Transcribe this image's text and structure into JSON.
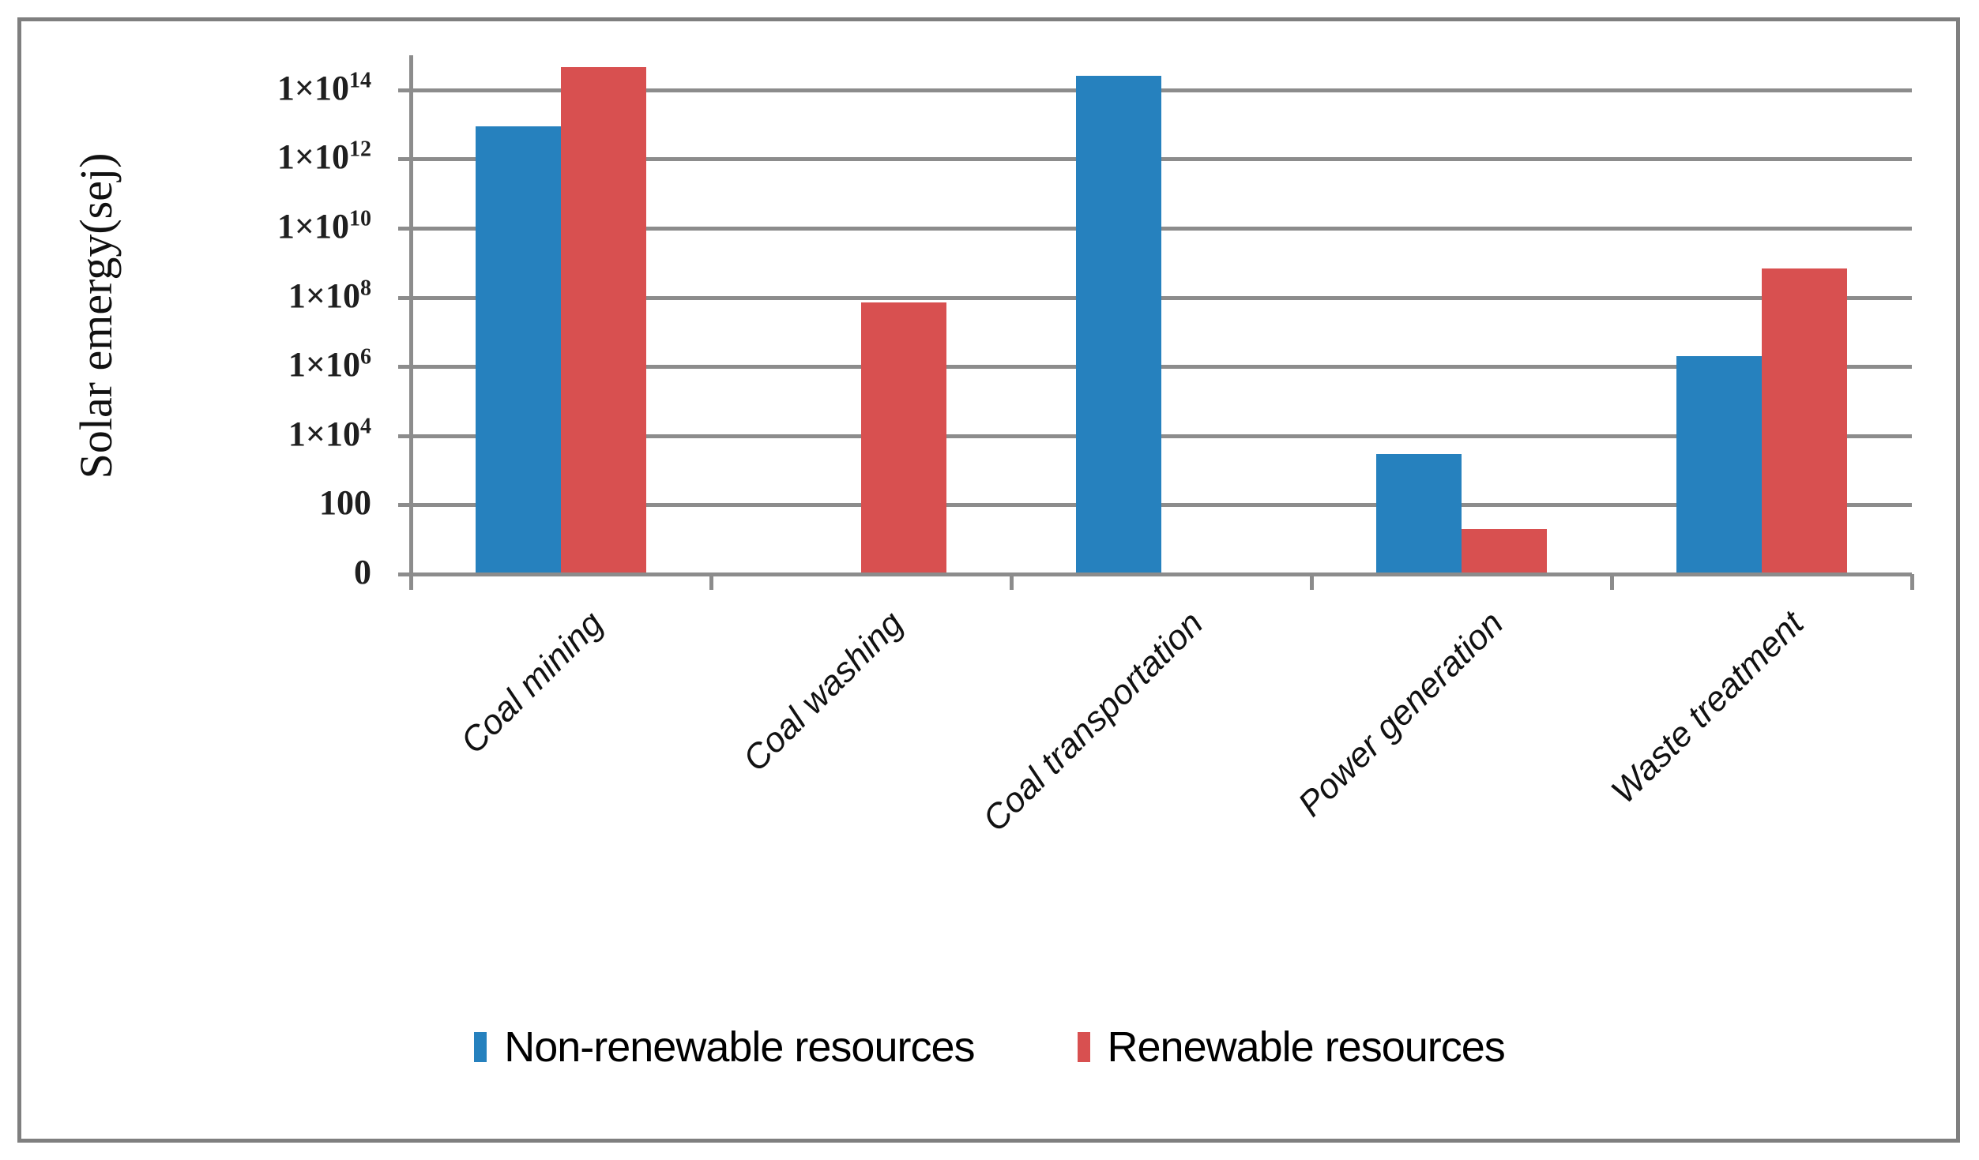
{
  "figure": {
    "background": "#ffffff",
    "border_color": "#7f7f7f"
  },
  "chart_data": {
    "type": "bar",
    "title": "",
    "xlabel": "",
    "ylabel": "Solar emergy(sej)",
    "scale": "log",
    "ylim": [
      1,
      1000000000000000.0
    ],
    "grid": true,
    "grid_color": "#8c8c8c",
    "axis_color": "#8c8c8c",
    "tick_text_color": "#1f1f1f",
    "legend_position": "bottom",
    "y_ticks": [
      {
        "mantissa": "0",
        "exponent": "",
        "decade": 0
      },
      {
        "mantissa": "100",
        "exponent": "",
        "decade": 2
      },
      {
        "mantissa": "1×10",
        "exponent": "4",
        "decade": 4
      },
      {
        "mantissa": "1×10",
        "exponent": "6",
        "decade": 6
      },
      {
        "mantissa": "1×10",
        "exponent": "8",
        "decade": 8
      },
      {
        "mantissa": "1×10",
        "exponent": "10",
        "decade": 10
      },
      {
        "mantissa": "1×10",
        "exponent": "12",
        "decade": 12
      },
      {
        "mantissa": "1×10",
        "exponent": "14",
        "decade": 14
      }
    ],
    "categories": [
      "Coal mining",
      "Coal washing",
      "Coal transportation",
      "Power generation",
      "Waste treatment"
    ],
    "series": [
      {
        "name": "Non-renewable resources",
        "color": "#2681be",
        "values": [
          9000000000000.0,
          0,
          250000000000000.0,
          3000,
          2000000.0
        ]
      },
      {
        "name": "Renewable resources",
        "color": "#d85050",
        "values": [
          450000000000000.0,
          70000000.0,
          0,
          20,
          700000000.0
        ]
      }
    ]
  }
}
